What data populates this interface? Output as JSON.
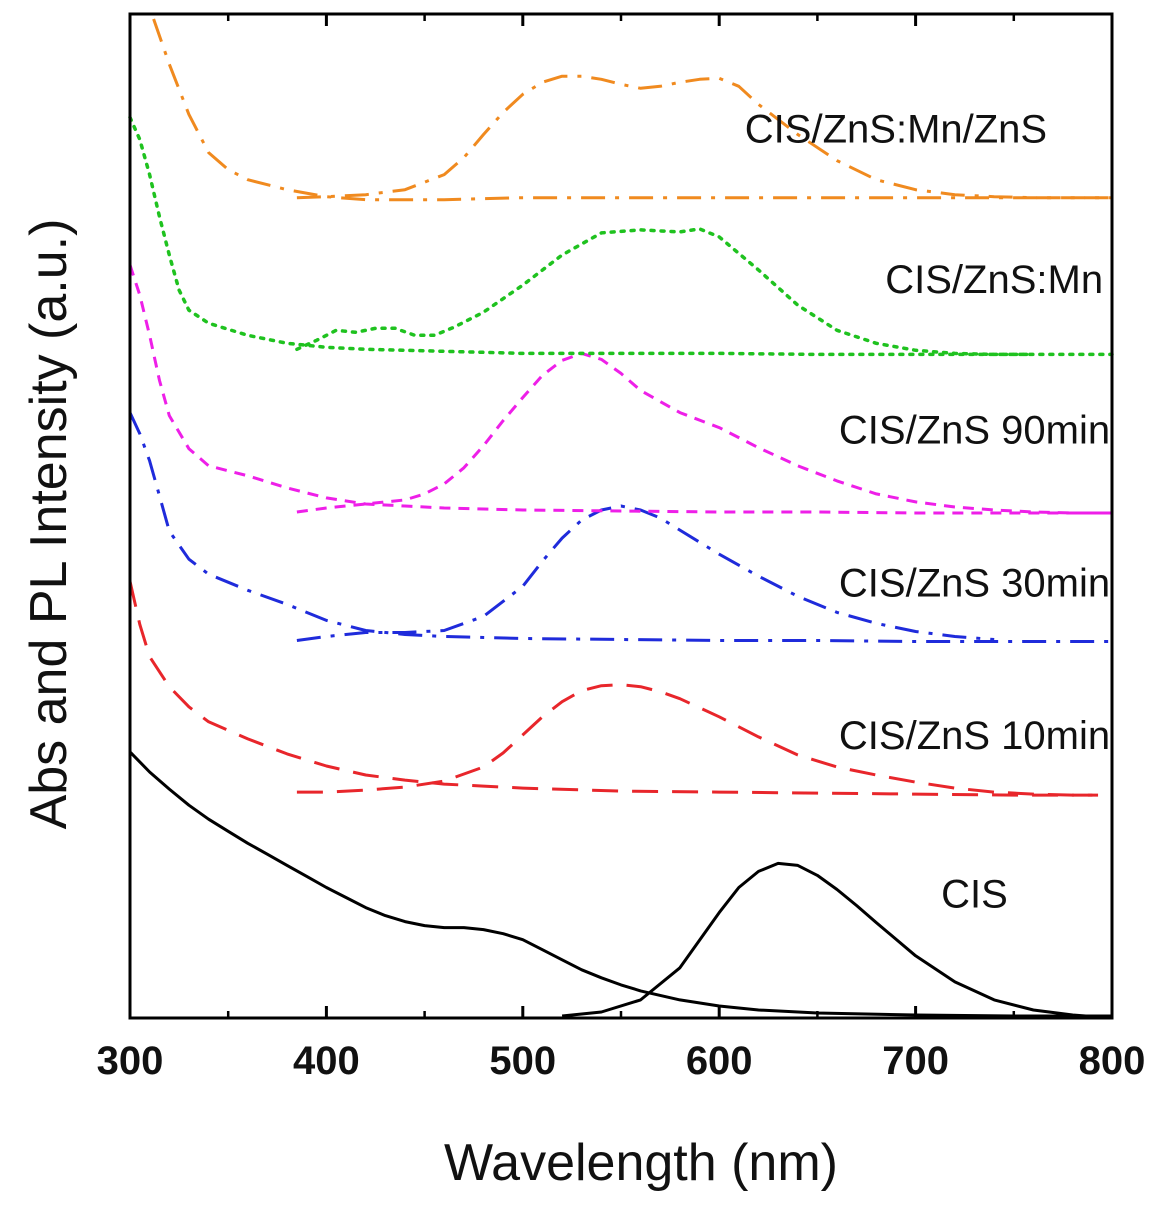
{
  "chart_data": {
    "type": "line",
    "title": "",
    "xlabel": "Wavelength (nm)",
    "ylabel": "Abs and PL Intensity (a.u.)",
    "xlim": [
      300,
      800
    ],
    "ylim": [
      0,
      10
    ],
    "xticks": [
      300,
      400,
      500,
      600,
      700,
      800
    ],
    "ytick_labels": "none",
    "grid": false,
    "legend": "inline labels above each curve pair",
    "series": [
      {
        "name": "CIS",
        "color": "#000000",
        "dash": "solid",
        "label_position": [
          730,
          1.1
        ],
        "absorption": {
          "x": [
            300,
            310,
            320,
            330,
            340,
            350,
            360,
            370,
            380,
            390,
            400,
            410,
            420,
            430,
            440,
            450,
            460,
            470,
            480,
            490,
            500,
            510,
            520,
            530,
            540,
            550,
            560,
            580,
            600,
            620,
            650,
            700,
            750,
            800
          ],
          "y": [
            2.65,
            2.45,
            2.28,
            2.12,
            1.98,
            1.86,
            1.74,
            1.63,
            1.52,
            1.41,
            1.3,
            1.2,
            1.1,
            1.02,
            0.96,
            0.92,
            0.9,
            0.9,
            0.88,
            0.84,
            0.78,
            0.68,
            0.58,
            0.48,
            0.4,
            0.33,
            0.27,
            0.18,
            0.12,
            0.08,
            0.05,
            0.03,
            0.02,
            0.02
          ]
        },
        "pl": {
          "x": [
            520,
            540,
            560,
            580,
            600,
            610,
            620,
            630,
            640,
            650,
            660,
            670,
            680,
            700,
            720,
            740,
            760,
            780,
            800
          ],
          "y": [
            0.02,
            0.06,
            0.18,
            0.5,
            1.05,
            1.3,
            1.46,
            1.54,
            1.52,
            1.42,
            1.28,
            1.12,
            0.95,
            0.62,
            0.36,
            0.18,
            0.08,
            0.03,
            0.0
          ]
        }
      },
      {
        "name": "CIS/ZnS 10min",
        "color": "#e8262b",
        "dash": "dash",
        "label_position": [
          730,
          2.68
        ],
        "absorption": {
          "x": [
            300,
            305,
            310,
            320,
            330,
            340,
            360,
            380,
            400,
            420,
            440,
            460,
            480,
            500,
            550,
            600,
            650,
            700,
            750,
            800
          ],
          "y": [
            4.35,
            3.92,
            3.6,
            3.3,
            3.1,
            2.95,
            2.78,
            2.63,
            2.51,
            2.42,
            2.37,
            2.33,
            2.31,
            2.29,
            2.26,
            2.25,
            2.24,
            2.23,
            2.22,
            2.22
          ]
        },
        "pl": {
          "x": [
            385,
            400,
            420,
            440,
            460,
            480,
            490,
            500,
            510,
            520,
            530,
            540,
            550,
            560,
            570,
            580,
            600,
            620,
            640,
            660,
            680,
            700,
            720,
            740,
            760,
            780,
            790
          ],
          "y": [
            2.25,
            2.25,
            2.27,
            2.3,
            2.36,
            2.5,
            2.64,
            2.82,
            3.0,
            3.15,
            3.26,
            3.31,
            3.32,
            3.3,
            3.25,
            3.18,
            3.0,
            2.8,
            2.62,
            2.5,
            2.42,
            2.35,
            2.29,
            2.25,
            2.23,
            2.22,
            2.22
          ]
        }
      },
      {
        "name": "CIS/ZnS 30min",
        "color": "#1f2bdb",
        "dash": "dashdot",
        "label_position": [
          730,
          4.2
        ],
        "absorption": {
          "x": [
            300,
            305,
            310,
            315,
            320,
            330,
            340,
            360,
            380,
            400,
            420,
            440,
            460,
            480,
            500,
            550,
            600,
            650,
            700,
            750,
            800
          ],
          "y": [
            6.03,
            5.82,
            5.55,
            5.2,
            4.85,
            4.57,
            4.42,
            4.26,
            4.12,
            3.96,
            3.86,
            3.82,
            3.8,
            3.79,
            3.78,
            3.77,
            3.76,
            3.76,
            3.75,
            3.75,
            3.75
          ]
        },
        "pl": {
          "x": [
            385,
            400,
            420,
            440,
            460,
            480,
            500,
            510,
            520,
            530,
            540,
            550,
            560,
            570,
            580,
            600,
            620,
            640,
            660,
            680,
            700,
            720,
            740
          ],
          "y": [
            3.76,
            3.8,
            3.84,
            3.84,
            3.86,
            4.0,
            4.3,
            4.55,
            4.78,
            4.96,
            5.06,
            5.1,
            5.06,
            4.98,
            4.86,
            4.62,
            4.4,
            4.2,
            4.04,
            3.93,
            3.85,
            3.8,
            3.77
          ]
        }
      },
      {
        "name": "CIS/ZnS 90min",
        "color": "#ee1fe8",
        "dash": "shortdash",
        "label_position": [
          730,
          5.72
        ],
        "absorption": {
          "x": [
            300,
            305,
            310,
            315,
            320,
            330,
            340,
            360,
            380,
            400,
            420,
            440,
            460,
            480,
            500,
            550,
            600,
            650,
            700,
            750,
            800
          ],
          "y": [
            7.5,
            7.2,
            6.8,
            6.35,
            6.0,
            5.67,
            5.5,
            5.4,
            5.28,
            5.18,
            5.12,
            5.1,
            5.08,
            5.07,
            5.06,
            5.05,
            5.04,
            5.04,
            5.03,
            5.03,
            5.03
          ]
        },
        "pl": {
          "x": [
            385,
            400,
            420,
            440,
            450,
            460,
            470,
            480,
            490,
            500,
            510,
            520,
            530,
            540,
            550,
            560,
            580,
            600,
            620,
            640,
            660,
            680,
            700,
            720,
            740,
            760,
            780,
            800
          ],
          "y": [
            5.04,
            5.08,
            5.12,
            5.16,
            5.22,
            5.32,
            5.48,
            5.7,
            5.95,
            6.18,
            6.4,
            6.55,
            6.62,
            6.56,
            6.42,
            6.25,
            6.03,
            5.88,
            5.68,
            5.5,
            5.35,
            5.22,
            5.14,
            5.09,
            5.06,
            5.04,
            5.03,
            5.03
          ]
        }
      },
      {
        "name": "CIS/ZnS:Mn",
        "color": "#1fc21f",
        "dash": "dot",
        "label_position": [
          740,
          7.22
        ],
        "absorption": {
          "x": [
            300,
            305,
            310,
            315,
            320,
            325,
            330,
            340,
            350,
            360,
            380,
            400,
            420,
            440,
            460,
            480,
            500,
            550,
            600,
            650,
            700,
            750,
            800
          ],
          "y": [
            8.97,
            8.75,
            8.4,
            7.98,
            7.6,
            7.25,
            7.05,
            6.92,
            6.86,
            6.8,
            6.72,
            6.68,
            6.66,
            6.65,
            6.64,
            6.63,
            6.62,
            6.62,
            6.62,
            6.61,
            6.61,
            6.61,
            6.61
          ]
        },
        "pl": {
          "x": [
            385,
            395,
            405,
            415,
            425,
            435,
            445,
            455,
            465,
            480,
            500,
            520,
            540,
            560,
            580,
            590,
            600,
            620,
            640,
            660,
            680,
            700,
            720,
            740,
            760
          ],
          "y": [
            6.66,
            6.75,
            6.85,
            6.83,
            6.87,
            6.87,
            6.8,
            6.8,
            6.88,
            7.03,
            7.3,
            7.6,
            7.82,
            7.85,
            7.83,
            7.86,
            7.78,
            7.45,
            7.1,
            6.85,
            6.72,
            6.65,
            6.62,
            6.61,
            6.61
          ]
        }
      },
      {
        "name": "CIS/ZnS:Mn/ZnS",
        "color": "#f08a1f",
        "dash": "dashdot",
        "label_position": [
          690,
          8.72
        ],
        "absorption": {
          "x": [
            312,
            320,
            330,
            340,
            350,
            360,
            380,
            400,
            420,
            440,
            460,
            480,
            500,
            550,
            600,
            650,
            700,
            750,
            800
          ],
          "y": [
            9.95,
            9.5,
            9.0,
            8.62,
            8.45,
            8.35,
            8.25,
            8.18,
            8.15,
            8.15,
            8.15,
            8.16,
            8.17,
            8.17,
            8.17,
            8.17,
            8.17,
            8.17,
            8.17
          ]
        },
        "pl": {
          "x": [
            385,
            400,
            420,
            440,
            460,
            470,
            480,
            490,
            500,
            510,
            520,
            530,
            540,
            550,
            560,
            570,
            580,
            590,
            600,
            610,
            620,
            640,
            660,
            680,
            700,
            720,
            740,
            760,
            780,
            800
          ],
          "y": [
            8.17,
            8.18,
            8.2,
            8.25,
            8.4,
            8.57,
            8.8,
            9.02,
            9.2,
            9.32,
            9.38,
            9.38,
            9.35,
            9.3,
            9.26,
            9.28,
            9.32,
            9.35,
            9.36,
            9.28,
            9.1,
            8.8,
            8.54,
            8.35,
            8.25,
            8.2,
            8.18,
            8.17,
            8.17,
            8.17
          ]
        }
      }
    ]
  }
}
